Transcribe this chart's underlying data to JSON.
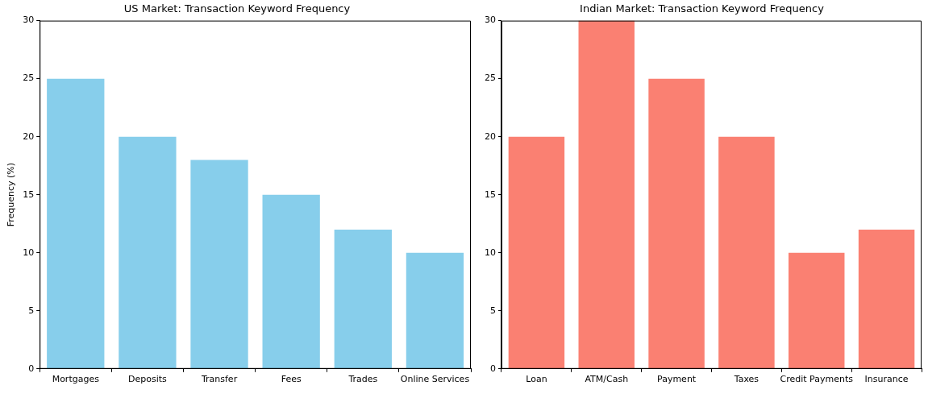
{
  "chart_data": [
    {
      "type": "bar",
      "title": "US Market: Transaction Keyword Frequency",
      "ylabel": "Frequency (%)",
      "categories": [
        "Mortgages",
        "Deposits",
        "Transfer",
        "Fees",
        "Trades",
        "Online Services"
      ],
      "values": [
        25,
        20,
        18,
        15,
        12,
        10
      ],
      "color": "#87ceeb",
      "ylim": [
        0,
        30
      ],
      "yticks": [
        0,
        5,
        10,
        15,
        20,
        25,
        30
      ],
      "grid": false
    },
    {
      "type": "bar",
      "title": "Indian Market: Transaction Keyword Frequency",
      "categories": [
        "Loan",
        "ATM/Cash",
        "Payment",
        "Taxes",
        "Credit Payments",
        "Insurance"
      ],
      "values": [
        20,
        30,
        25,
        20,
        10,
        12
      ],
      "color": "#fa8072",
      "ylim": [
        0,
        30
      ],
      "yticks": [
        0,
        5,
        10,
        15,
        20,
        25,
        30
      ],
      "grid": false
    }
  ]
}
